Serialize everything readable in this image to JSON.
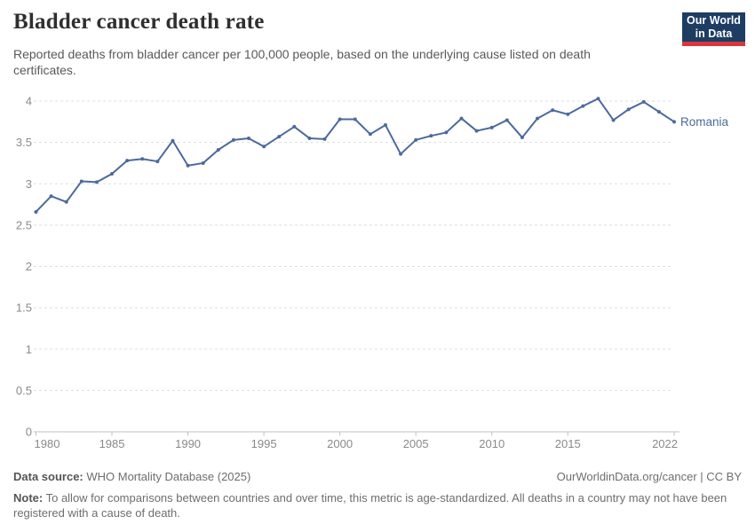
{
  "chart_data": {
    "type": "line",
    "title": "Bladder cancer death rate",
    "subtitle": "Reported deaths from bladder cancer per 100,000 people, based on the underlying cause listed on death certificates.",
    "xlabel": "",
    "ylabel": "",
    "xlim": [
      1980,
      2022
    ],
    "ylim": [
      0,
      4.05
    ],
    "grid": "horizontal-dashed",
    "legend": "inline-end-label",
    "x_ticks": [
      1980,
      1985,
      1990,
      1995,
      2000,
      2005,
      2010,
      2015,
      2022
    ],
    "y_ticks": [
      0,
      0.5,
      1,
      1.5,
      2,
      2.5,
      3,
      3.5,
      4
    ],
    "y_tick_labels": [
      "0",
      "0.5",
      "1",
      "1.5",
      "2",
      "2.5",
      "3",
      "3.5",
      "4"
    ],
    "x": [
      1980,
      1981,
      1982,
      1983,
      1984,
      1985,
      1986,
      1987,
      1988,
      1989,
      1990,
      1991,
      1992,
      1993,
      1994,
      1995,
      1996,
      1997,
      1998,
      1999,
      2000,
      2001,
      2002,
      2003,
      2004,
      2005,
      2006,
      2007,
      2008,
      2009,
      2010,
      2011,
      2012,
      2013,
      2014,
      2015,
      2016,
      2017,
      2018,
      2019,
      2020,
      2021,
      2022
    ],
    "series": [
      {
        "name": "Romania",
        "color": "#4c6a9c",
        "values": [
          2.66,
          2.85,
          2.78,
          3.03,
          3.02,
          3.12,
          3.28,
          3.3,
          3.27,
          3.52,
          3.22,
          3.25,
          3.41,
          3.53,
          3.55,
          3.45,
          3.57,
          3.69,
          3.55,
          3.54,
          3.78,
          3.78,
          3.6,
          3.71,
          3.36,
          3.53,
          3.58,
          3.62,
          3.79,
          3.64,
          3.68,
          3.77,
          3.56,
          3.79,
          3.89,
          3.84,
          3.94,
          4.03,
          3.77,
          3.9,
          3.99,
          3.87,
          3.75
        ]
      }
    ]
  },
  "branding": {
    "logo_line1": "Our World",
    "logo_line2": "in Data",
    "navy": "#1d3d63",
    "red": "#d7383f"
  },
  "footer": {
    "source_label": "Data source:",
    "source_value": " WHO Mortality Database (2025)",
    "attribution": "OurWorldinData.org/cancer | CC BY",
    "note_label": "Note:",
    "note_value": " To allow for comparisons between countries and over time, this metric is age-standardized. All deaths in a country may not have been registered with a cause of death."
  },
  "colors": {
    "line": "#4c6a9c",
    "grid": "#dedede",
    "axis": "#c2c2c2",
    "tick_text": "#8a8a8a",
    "title": "#2f2f2f",
    "subtitle": "#595959",
    "footer": "#6e6e6e"
  }
}
